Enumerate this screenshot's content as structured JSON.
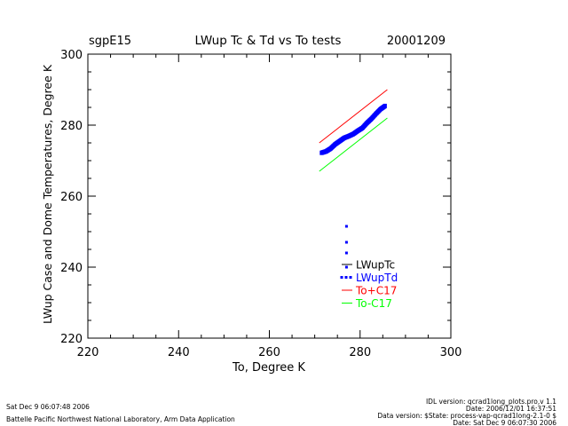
{
  "header": {
    "site": "sgpE15",
    "date": "20001209"
  },
  "chart_data": {
    "type": "scatter",
    "title": "LWup Tc & Td vs To tests",
    "xlabel": "To, Degree K",
    "ylabel": "LWup Case and Dome Temperatures, Degree K",
    "xlim": [
      220,
      300
    ],
    "ylim": [
      220,
      300
    ],
    "xticks": [
      "220",
      "240",
      "260",
      "280",
      "300"
    ],
    "yticks": [
      "220",
      "240",
      "260",
      "280",
      "300"
    ],
    "legend_position": "lower-right inside plot",
    "series": [
      {
        "name": "LWupTc",
        "color": "#000000",
        "style": "line",
        "x": [],
        "y": []
      },
      {
        "name": "LWupTd",
        "color": "#0000ff",
        "style": "points",
        "x": [
          271.5,
          272.5,
          273.5,
          274.5,
          275.5,
          276.5,
          277.5,
          278.5,
          279.5,
          280.5,
          281.5,
          282.5,
          283.5,
          284.5,
          285.5,
          277,
          277,
          277,
          277
        ],
        "y": [
          272.2,
          272.6,
          273.4,
          274.6,
          275.5,
          276.4,
          276.9,
          277.5,
          278.4,
          279.2,
          280.6,
          281.8,
          283.2,
          284.5,
          285.4,
          240,
          244,
          247,
          251.5
        ]
      },
      {
        "name": "To+C17",
        "color": "#ff0000",
        "style": "line",
        "x": [
          271,
          286
        ],
        "y": [
          275,
          290
        ]
      },
      {
        "name": "To-C17",
        "color": "#00ff00",
        "style": "line",
        "x": [
          271,
          286
        ],
        "y": [
          267,
          282
        ]
      }
    ]
  },
  "footer": {
    "left_line1": "Sat Dec  9 06:07:48 2006",
    "left_line2": "Battelle Pacific Northwest National Laboratory, Arm Data Application",
    "right_line1": "IDL version: qcrad1long_plots.pro,v 1.1",
    "right_line2": "Date: 2006/12/01 16:37:51",
    "right_line3": "Data version: $State: process-vap-qcrad1long-2.1-0 $",
    "right_line4": "Date: Sat Dec  9 06:07:30 2006"
  }
}
